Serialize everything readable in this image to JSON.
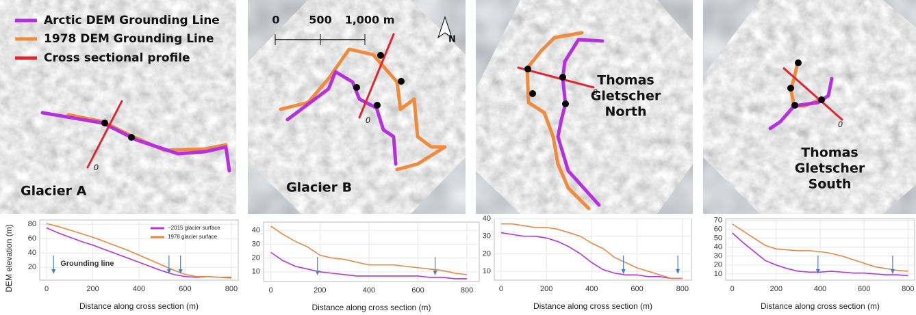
{
  "map_legend": {
    "items": [
      {
        "label": "Arctic DEM Grounding Line",
        "color": "#b430e0"
      },
      {
        "label": "1978 DEM Grounding Line",
        "color": "#f08a3c"
      },
      {
        "label": "Cross sectional profile",
        "color": "#e0252e"
      }
    ]
  },
  "scale_bar": {
    "labels": [
      "0",
      "500",
      "1,000 m"
    ]
  },
  "north": "N",
  "maps": [
    {
      "label_lines": [
        "Glacier A"
      ],
      "profile_start": "0"
    },
    {
      "label_lines": [
        "Glacier B"
      ],
      "profile_start": "0"
    },
    {
      "label_lines": [
        "Thomas",
        "Gletscher",
        "North"
      ],
      "profile_start": "0"
    },
    {
      "label_lines": [
        "Thomas",
        "Gletscher",
        "South"
      ],
      "profile_start": "0"
    }
  ],
  "chart_data": [
    {
      "type": "line",
      "ylabel": "DEM elevation (m)",
      "xlabel": "Distance along cross section (m)",
      "x": [
        0,
        50,
        100,
        150,
        200,
        250,
        300,
        350,
        400,
        450,
        500,
        550,
        600,
        650,
        700,
        750,
        800
      ],
      "series": [
        {
          "name": "~2015 glacier surface",
          "color": "#b430e0",
          "values": [
            75,
            68,
            62,
            56,
            51,
            45,
            39,
            33,
            27,
            21,
            15,
            10,
            7,
            6,
            7,
            6,
            6
          ]
        },
        {
          "name": "1978 glacier surface",
          "color": "#e8873f",
          "values": [
            81,
            77,
            72,
            67,
            62,
            56,
            50,
            44,
            37,
            30,
            23,
            16,
            10,
            7,
            7,
            6,
            5
          ]
        }
      ],
      "xlim": [
        -30,
        830
      ],
      "ylim": [
        2,
        86
      ],
      "xticks": [
        0,
        200,
        400,
        600,
        800
      ],
      "yticks": [
        20,
        40,
        60,
        80
      ],
      "arrow_x": [
        30,
        530,
        580
      ],
      "annotation": "Grounding line",
      "legend": true,
      "grid": true
    },
    {
      "type": "line",
      "xlabel": "Distance along cross section (m)",
      "x": [
        0,
        50,
        100,
        150,
        200,
        250,
        300,
        350,
        400,
        450,
        500,
        550,
        600,
        650,
        700,
        750,
        800
      ],
      "series": [
        {
          "color": "#b430e0",
          "values": [
            24,
            18,
            14,
            12,
            10,
            9,
            8,
            7,
            7,
            7,
            7,
            7,
            7,
            6,
            6,
            5,
            5
          ]
        },
        {
          "color": "#e8873f",
          "values": [
            43,
            37,
            32,
            28,
            22,
            20,
            19,
            17,
            15,
            15,
            15,
            14,
            13,
            12,
            11,
            9,
            8
          ]
        }
      ],
      "xlim": [
        -30,
        850
      ],
      "ylim": [
        3,
        46
      ],
      "xticks": [
        0,
        200,
        400,
        600,
        800
      ],
      "yticks": [
        10,
        20,
        30,
        40
      ],
      "arrow_x": [
        190,
        670
      ],
      "legend": false,
      "grid": true
    },
    {
      "type": "line",
      "xlabel": "Distance along cross section (m)",
      "x": [
        0,
        50,
        100,
        150,
        200,
        250,
        300,
        350,
        400,
        450,
        500,
        550,
        600,
        650,
        700,
        750,
        800
      ],
      "series": [
        {
          "color": "#b430e0",
          "values": [
            32,
            31,
            30,
            30,
            29,
            27,
            24,
            20,
            15,
            11,
            9,
            8,
            8,
            7,
            7,
            6,
            6
          ]
        },
        {
          "color": "#e8873f",
          "values": [
            37,
            37,
            36,
            35,
            35,
            34,
            32,
            30,
            26,
            23,
            18,
            15,
            12,
            10,
            8,
            6,
            6
          ]
        }
      ],
      "xlim": [
        -30,
        840
      ],
      "ylim": [
        5,
        40
      ],
      "xticks": [
        0,
        200,
        400,
        600,
        800
      ],
      "yticks": [
        10,
        20,
        30,
        40
      ],
      "arrow_x": [
        540,
        780
      ],
      "legend": false,
      "grid": true
    },
    {
      "type": "line",
      "xlabel": "Distance along cross section (m)",
      "x": [
        0,
        50,
        100,
        150,
        200,
        250,
        300,
        350,
        400,
        450,
        500,
        550,
        600,
        650,
        700,
        750,
        800
      ],
      "series": [
        {
          "color": "#b430e0",
          "values": [
            56,
            45,
            35,
            25,
            20,
            16,
            13,
            12,
            12,
            13,
            12,
            11,
            11,
            10,
            9,
            9,
            8
          ]
        },
        {
          "color": "#e8873f",
          "values": [
            66,
            58,
            50,
            42,
            38,
            37,
            36,
            36,
            35,
            33,
            30,
            26,
            22,
            18,
            16,
            14,
            13
          ]
        }
      ],
      "xlim": [
        -30,
        830
      ],
      "ylim": [
        3,
        72
      ],
      "xticks": [
        0,
        200,
        400,
        600,
        800
      ],
      "yticks": [
        10,
        20,
        30,
        40,
        50,
        60,
        70
      ],
      "arrow_x": [
        390,
        730
      ],
      "legend": false,
      "grid": true
    }
  ]
}
